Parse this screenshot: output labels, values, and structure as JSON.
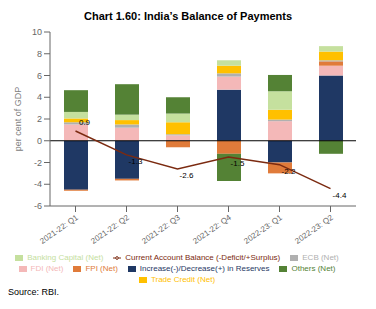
{
  "chart_data": {
    "type": "bar",
    "title": "Chart 1.60: India’s Balance of Payments",
    "ylabel": "per cent of GDP",
    "source": "Source: RBI.",
    "stacked": true,
    "categories": [
      "2021-22: Q1",
      "2021-22: Q2",
      "2021-22: Q3",
      "2021-22: Q4",
      "2022-23: Q1",
      "2022-23: Q2"
    ],
    "series": [
      {
        "name": "Increase(-)/Decrease(+) in Reserves",
        "color": "#1f3864",
        "values": [
          -4.5,
          -3.5,
          0.0,
          4.7,
          -2.0,
          6.0
        ]
      },
      {
        "name": "FDI (Net)",
        "color": "#f4b8b8",
        "values": [
          1.5,
          1.2,
          0.5,
          1.2,
          1.8,
          0.9
        ]
      },
      {
        "name": "FPI (Net)",
        "color": "#e07b3a",
        "values": [
          -0.1,
          -0.15,
          -0.6,
          -1.2,
          -1.0,
          0.4
        ]
      },
      {
        "name": "ECB (Net)",
        "color": "#b0b0b0",
        "values": [
          0.2,
          0.3,
          0.1,
          0.3,
          0.15,
          0.1
        ]
      },
      {
        "name": "Trade Credit (Net)",
        "color": "#ffc000",
        "values": [
          0.35,
          0.4,
          1.1,
          0.7,
          0.9,
          0.8
        ]
      },
      {
        "name": "Banking Capital (Net)",
        "color": "#c5e09e",
        "values": [
          0.6,
          0.5,
          0.8,
          0.5,
          1.7,
          0.5
        ]
      },
      {
        "name": "Others (Net)",
        "color": "#548235",
        "values": [
          2.0,
          2.8,
          1.5,
          -2.5,
          1.5,
          -1.2
        ]
      },
      {
        "name": "Current Account Balance (-Deficit/+Surplus)",
        "type": "line",
        "color": "#7b2a10",
        "data_labels": true,
        "values": [
          0.9,
          -1.3,
          -2.6,
          -1.5,
          -2.2,
          -4.4
        ]
      }
    ],
    "ylim": [
      -6,
      10
    ],
    "yticks": [
      -6,
      -4,
      -2,
      0,
      2,
      4,
      6,
      8,
      10
    ],
    "grid": false,
    "legend": "bottom"
  }
}
